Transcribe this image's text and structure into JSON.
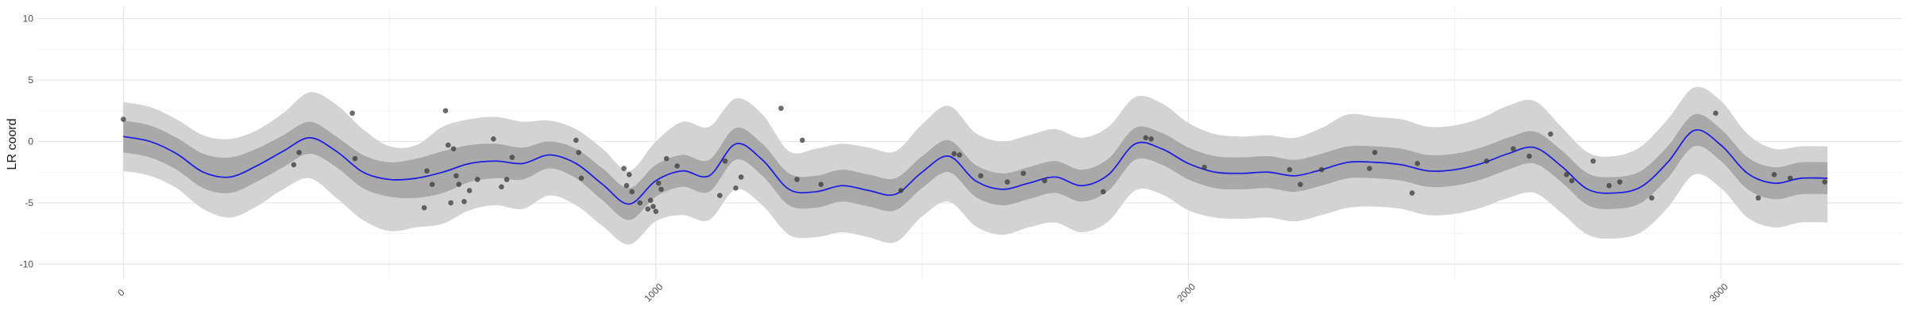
{
  "chart_data": {
    "type": "line",
    "title": "",
    "xlabel": "",
    "ylabel": "LR coord",
    "xlim": [
      -160,
      3340
    ],
    "ylim": [
      -11.2,
      11.0
    ],
    "grid": true,
    "x_ticks": [
      0,
      1000,
      2000,
      3000
    ],
    "x_tick_labels": [
      "0",
      "1000",
      "2000",
      "3000"
    ],
    "y_ticks": [
      -10,
      -5,
      0,
      5,
      10
    ],
    "y_tick_labels": [
      "-10",
      "-5",
      "0",
      "5",
      "10"
    ],
    "colors": {
      "line": "#1f1fe0",
      "inner_band": "#a9a9a9",
      "outer_band": "#d3d3d3",
      "points": "#3a3a3a",
      "grid_major": "#e6e6e6",
      "grid_minor": "#f2f2f2"
    },
    "series": [
      {
        "role": "fit-line",
        "x": [
          0,
          50,
          100,
          150,
          200,
          250,
          300,
          350,
          400,
          450,
          500,
          550,
          600,
          650,
          700,
          750,
          800,
          850,
          900,
          950,
          1000,
          1050,
          1100,
          1150,
          1200,
          1250,
          1300,
          1350,
          1400,
          1450,
          1500,
          1550,
          1600,
          1650,
          1700,
          1750,
          1800,
          1850,
          1900,
          1950,
          2000,
          2050,
          2100,
          2150,
          2200,
          2250,
          2300,
          2350,
          2400,
          2450,
          2500,
          2550,
          2600,
          2650,
          2700,
          2750,
          2800,
          2850,
          2900,
          2950,
          3000,
          3050,
          3100,
          3150,
          3200
        ],
        "y": [
          0.4,
          0.0,
          -1.0,
          -2.5,
          -2.9,
          -2.0,
          -0.8,
          0.3,
          -0.8,
          -2.5,
          -3.1,
          -3.0,
          -2.5,
          -1.8,
          -1.6,
          -1.8,
          -1.1,
          -1.8,
          -3.5,
          -5.1,
          -3.2,
          -2.4,
          -2.8,
          -0.2,
          -1.5,
          -3.9,
          -4.1,
          -3.6,
          -4.0,
          -4.3,
          -2.5,
          -1.2,
          -3.2,
          -3.9,
          -3.4,
          -2.9,
          -3.6,
          -2.7,
          -0.2,
          -0.6,
          -1.8,
          -2.5,
          -2.6,
          -2.5,
          -2.8,
          -2.3,
          -1.7,
          -1.7,
          -1.9,
          -2.4,
          -2.3,
          -1.8,
          -1.0,
          -0.5,
          -2.0,
          -3.9,
          -4.2,
          -3.7,
          -1.7,
          0.9,
          -0.3,
          -2.6,
          -3.4,
          -3.0,
          -3.0
        ]
      },
      {
        "role": "inner-band-upper",
        "y": [
          1.7,
          1.3,
          0.3,
          -1.0,
          -1.3,
          -0.6,
          0.5,
          1.6,
          0.4,
          -1.1,
          -1.7,
          -1.4,
          -0.8,
          -0.3,
          -0.2,
          -0.5,
          0.0,
          -0.6,
          -2.2,
          -3.8,
          -1.9,
          -1.1,
          -1.5,
          1.1,
          -0.2,
          -2.6,
          -2.8,
          -2.3,
          -2.7,
          -3.0,
          -1.2,
          0.1,
          -1.9,
          -2.6,
          -2.1,
          -1.6,
          -2.3,
          -1.4,
          1.1,
          0.7,
          -0.5,
          -1.2,
          -1.3,
          -1.2,
          -1.5,
          -1.0,
          -0.4,
          -0.4,
          -0.6,
          -1.1,
          -1.0,
          -0.5,
          0.3,
          0.8,
          -0.7,
          -2.6,
          -2.9,
          -2.4,
          -0.4,
          2.2,
          1.0,
          -1.3,
          -2.1,
          -1.7,
          -1.7
        ]
      },
      {
        "role": "inner-band-lower",
        "y": [
          -0.9,
          -1.3,
          -2.3,
          -3.8,
          -4.2,
          -3.3,
          -2.1,
          -1.0,
          -2.1,
          -3.8,
          -4.5,
          -4.6,
          -4.2,
          -3.3,
          -3.0,
          -3.1,
          -2.2,
          -3.0,
          -4.8,
          -6.4,
          -4.5,
          -3.7,
          -4.1,
          -1.5,
          -2.8,
          -5.2,
          -5.4,
          -4.9,
          -5.3,
          -5.6,
          -3.8,
          -2.5,
          -4.5,
          -5.2,
          -4.7,
          -4.2,
          -4.9,
          -4.0,
          -1.5,
          -1.9,
          -3.1,
          -3.8,
          -3.9,
          -3.8,
          -4.1,
          -3.6,
          -3.0,
          -3.0,
          -3.2,
          -3.7,
          -3.6,
          -3.1,
          -2.3,
          -1.8,
          -3.3,
          -5.2,
          -5.5,
          -5.0,
          -3.0,
          -0.4,
          -1.6,
          -3.9,
          -4.7,
          -4.3,
          -4.3
        ]
      },
      {
        "role": "outer-band-upper",
        "y": [
          3.2,
          2.8,
          1.8,
          0.5,
          0.2,
          0.9,
          2.3,
          4.0,
          3.0,
          1.0,
          -0.4,
          -0.3,
          1.2,
          1.8,
          2.0,
          1.6,
          1.7,
          1.0,
          -0.6,
          -2.4,
          0.0,
          1.6,
          1.2,
          3.5,
          2.2,
          -0.8,
          -0.6,
          -0.2,
          -0.5,
          -0.8,
          1.4,
          2.9,
          0.7,
          0.0,
          0.5,
          1.0,
          0.3,
          1.2,
          3.6,
          3.1,
          1.5,
          0.6,
          0.4,
          0.5,
          0.3,
          1.1,
          2.2,
          2.0,
          1.8,
          1.2,
          1.3,
          1.9,
          2.9,
          3.3,
          1.2,
          -0.9,
          -1.2,
          -0.4,
          1.8,
          4.4,
          3.3,
          0.6,
          -0.6,
          -0.4,
          -0.4
        ]
      },
      {
        "role": "outer-band-lower",
        "y": [
          -2.4,
          -2.8,
          -3.8,
          -5.5,
          -6.2,
          -5.3,
          -3.9,
          -3.0,
          -4.6,
          -6.4,
          -7.3,
          -7.0,
          -6.7,
          -5.6,
          -5.2,
          -5.5,
          -4.4,
          -5.2,
          -6.9,
          -8.4,
          -6.5,
          -6.0,
          -6.4,
          -3.9,
          -5.2,
          -7.6,
          -7.8,
          -7.4,
          -7.8,
          -8.2,
          -6.1,
          -4.9,
          -6.9,
          -7.6,
          -7.0,
          -6.6,
          -7.4,
          -6.5,
          -4.0,
          -4.3,
          -5.6,
          -6.2,
          -6.3,
          -6.2,
          -6.5,
          -6.0,
          -5.4,
          -5.3,
          -5.5,
          -6.0,
          -5.9,
          -5.4,
          -4.6,
          -4.2,
          -5.8,
          -7.6,
          -7.9,
          -7.4,
          -5.4,
          -2.7,
          -3.8,
          -6.2,
          -7.0,
          -6.6,
          -6.6
        ]
      }
    ],
    "points": [
      [
        0,
        1.8
      ],
      [
        320,
        -1.9
      ],
      [
        330,
        -0.9
      ],
      [
        430,
        2.3
      ],
      [
        435,
        -1.4
      ],
      [
        570,
        -2.4
      ],
      [
        565,
        -5.4
      ],
      [
        580,
        -3.5
      ],
      [
        605,
        2.5
      ],
      [
        610,
        -0.3
      ],
      [
        615,
        -5.0
      ],
      [
        620,
        -0.6
      ],
      [
        625,
        -2.8
      ],
      [
        630,
        -3.5
      ],
      [
        640,
        -4.9
      ],
      [
        650,
        -4.0
      ],
      [
        665,
        -3.1
      ],
      [
        695,
        0.2
      ],
      [
        710,
        -3.7
      ],
      [
        720,
        -3.1
      ],
      [
        730,
        -1.3
      ],
      [
        850,
        0.1
      ],
      [
        855,
        -0.9
      ],
      [
        860,
        -3.0
      ],
      [
        940,
        -2.2
      ],
      [
        945,
        -3.6
      ],
      [
        950,
        -2.7
      ],
      [
        955,
        -4.1
      ],
      [
        970,
        -5.0
      ],
      [
        985,
        -5.5
      ],
      [
        990,
        -4.8
      ],
      [
        995,
        -5.3
      ],
      [
        1000,
        -5.7
      ],
      [
        1005,
        -3.4
      ],
      [
        1010,
        -3.9
      ],
      [
        1020,
        -1.4
      ],
      [
        1040,
        -2.0
      ],
      [
        1120,
        -4.4
      ],
      [
        1130,
        -1.6
      ],
      [
        1150,
        -3.8
      ],
      [
        1160,
        -2.9
      ],
      [
        1235,
        2.7
      ],
      [
        1265,
        -3.1
      ],
      [
        1275,
        0.1
      ],
      [
        1310,
        -3.5
      ],
      [
        1460,
        -4.0
      ],
      [
        1560,
        -1.0
      ],
      [
        1570,
        -1.1
      ],
      [
        1610,
        -2.8
      ],
      [
        1660,
        -3.3
      ],
      [
        1690,
        -2.6
      ],
      [
        1730,
        -3.2
      ],
      [
        1840,
        -4.1
      ],
      [
        1920,
        0.3
      ],
      [
        1930,
        0.2
      ],
      [
        2030,
        -2.1
      ],
      [
        2190,
        -2.3
      ],
      [
        2210,
        -3.5
      ],
      [
        2250,
        -2.3
      ],
      [
        2340,
        -2.2
      ],
      [
        2350,
        -0.9
      ],
      [
        2420,
        -4.2
      ],
      [
        2430,
        -1.8
      ],
      [
        2560,
        -1.6
      ],
      [
        2610,
        -0.6
      ],
      [
        2640,
        -1.2
      ],
      [
        2680,
        0.6
      ],
      [
        2710,
        -2.7
      ],
      [
        2720,
        -3.2
      ],
      [
        2760,
        -1.6
      ],
      [
        2790,
        -3.6
      ],
      [
        2810,
        -3.3
      ],
      [
        2870,
        -4.6
      ],
      [
        2990,
        2.3
      ],
      [
        3070,
        -4.6
      ],
      [
        3100,
        -2.7
      ],
      [
        3130,
        -3.0
      ],
      [
        3195,
        -3.3
      ]
    ]
  }
}
